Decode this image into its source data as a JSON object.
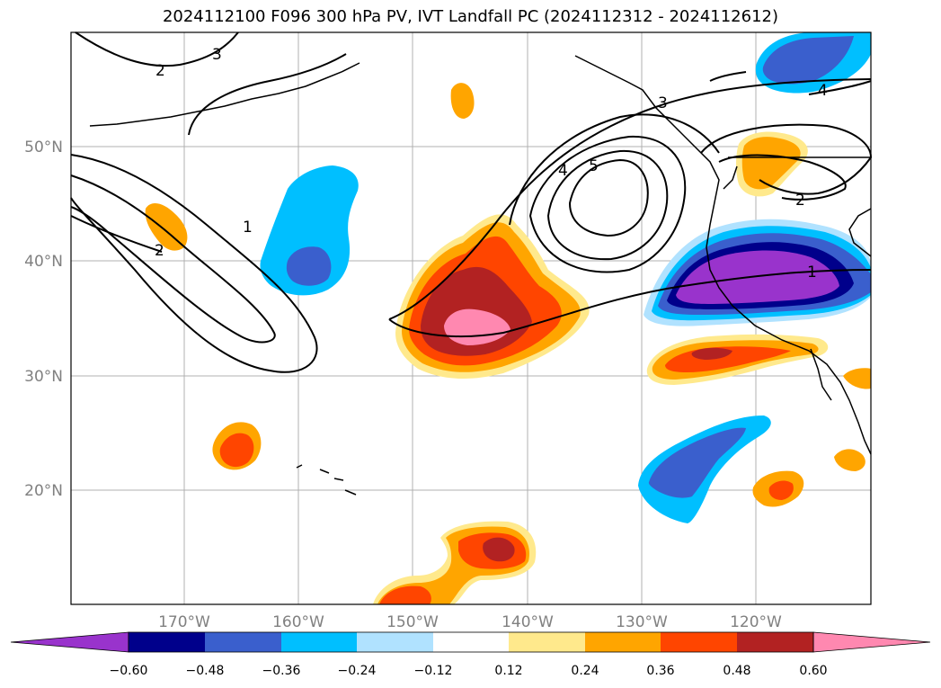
{
  "title": "2024112100 F096 300 hPa PV, IVT Landfall PC (2024112312 - 2024112612)",
  "map": {
    "lon_labels": [
      "170°W",
      "160°W",
      "150°W",
      "140°W",
      "130°W",
      "120°W"
    ],
    "lat_labels": [
      "50°N",
      "40°N",
      "30°N",
      "20°N"
    ],
    "label_color": "#808080",
    "grid_color": "#b0b0b0"
  },
  "contours": {
    "labels": [
      "3",
      "2",
      "2",
      "1",
      "3",
      "4",
      "5",
      "2",
      "1",
      "4"
    ]
  },
  "colorbar": {
    "colors": [
      "#9933cc",
      "#00008b",
      "#3a5fcd",
      "#00bfff",
      "#b0e2ff",
      "#ffffff",
      "#ffe98c",
      "#ffa500",
      "#ff4500",
      "#b22222",
      "#ff88b0"
    ],
    "tick_labels": [
      "−0.60",
      "−0.48",
      "−0.36",
      "−0.24",
      "−0.12",
      "0.12",
      "0.24",
      "0.36",
      "0.48",
      "0.60"
    ]
  }
}
